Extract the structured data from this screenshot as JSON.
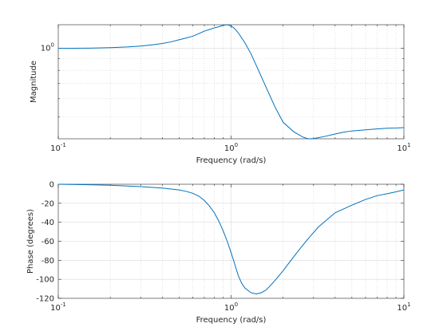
{
  "chart_data": [
    {
      "type": "line",
      "xscale": "log",
      "yscale": "log",
      "xlim": [
        0.1,
        10
      ],
      "ylim": [
        0.4,
        1.27
      ],
      "xlabel": "Frequency (rad/s)",
      "ylabel": "Magnitude",
      "grid": true,
      "xticks": [
        {
          "value": 0.1,
          "base": "10",
          "exp": "-1"
        },
        {
          "value": 1,
          "base": "10",
          "exp": "0"
        },
        {
          "value": 10,
          "base": "10",
          "exp": "1"
        }
      ],
      "yticks": [
        {
          "value": 1,
          "base": "10",
          "exp": "0"
        }
      ],
      "series": [
        {
          "color": "#0072bd",
          "x": [
            0.1,
            0.15,
            0.2,
            0.25,
            0.3,
            0.35,
            0.4,
            0.45,
            0.5,
            0.55,
            0.6,
            0.65,
            0.7,
            0.75,
            0.8,
            0.85,
            0.9,
            0.95,
            1.0,
            1.05,
            1.1,
            1.2,
            1.3,
            1.4,
            1.6,
            1.8,
            2.0,
            2.3,
            2.6,
            2.8,
            3.0,
            3.5,
            4.0,
            4.5,
            5.0,
            6.0,
            7.0,
            8.0,
            9.0,
            10.0
          ],
          "y": [
            1.0,
            1.002,
            1.007,
            1.014,
            1.023,
            1.036,
            1.05,
            1.068,
            1.09,
            1.11,
            1.13,
            1.16,
            1.19,
            1.21,
            1.23,
            1.245,
            1.262,
            1.27,
            1.255,
            1.22,
            1.17,
            1.06,
            0.95,
            0.84,
            0.67,
            0.55,
            0.473,
            0.43,
            0.407,
            0.4,
            0.401,
            0.41,
            0.42,
            0.428,
            0.433,
            0.438,
            0.442,
            0.445,
            0.446,
            0.448
          ]
        }
      ]
    },
    {
      "type": "line",
      "xscale": "log",
      "xlim": [
        0.1,
        10
      ],
      "ylim": [
        -120,
        0
      ],
      "xlabel": "Frequency (rad/s)",
      "ylabel": "Phase (degrees)",
      "grid": true,
      "xticks": [
        {
          "value": 0.1,
          "base": "10",
          "exp": "-1"
        },
        {
          "value": 1,
          "base": "10",
          "exp": "0"
        },
        {
          "value": 10,
          "base": "10",
          "exp": "1"
        }
      ],
      "yticks": [
        0,
        -20,
        -40,
        -60,
        -80,
        -100,
        -120
      ],
      "series": [
        {
          "color": "#0072bd",
          "x": [
            0.1,
            0.15,
            0.2,
            0.3,
            0.4,
            0.5,
            0.55,
            0.6,
            0.65,
            0.7,
            0.75,
            0.8,
            0.85,
            0.9,
            0.95,
            1.0,
            1.05,
            1.1,
            1.15,
            1.2,
            1.3,
            1.4,
            1.5,
            1.6,
            1.7,
            1.8,
            2.0,
            2.2,
            2.5,
            2.8,
            3.2,
            3.6,
            4.0,
            5.0,
            6.0,
            7.0,
            8.0,
            9.0,
            10.0
          ],
          "y": [
            0,
            -0.5,
            -1,
            -2.5,
            -4,
            -6,
            -7.5,
            -9.5,
            -12.5,
            -17,
            -23,
            -30,
            -39,
            -49,
            -60,
            -72,
            -84,
            -96,
            -104,
            -109,
            -114,
            -115.5,
            -114,
            -111,
            -106,
            -101,
            -91,
            -81,
            -68,
            -57,
            -45,
            -37,
            -30,
            -22,
            -16,
            -12,
            -10,
            -8,
            -6
          ]
        }
      ]
    }
  ]
}
